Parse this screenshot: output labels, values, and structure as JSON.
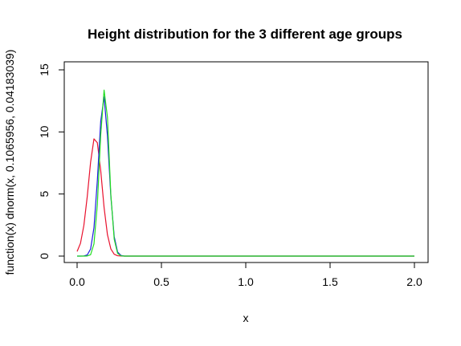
{
  "chart_data": {
    "type": "line",
    "title": "Height distribution for the 3 different age groups",
    "xlabel": "x",
    "ylabel": "function(x) dnorm(x, 0.1065956, 0.04183039)",
    "xlim": [
      0,
      2
    ],
    "ylim": [
      0,
      15
    ],
    "x_ticks": [
      0,
      0.5,
      1,
      1.5,
      2
    ],
    "x_tick_labels": [
      "0.0",
      "0.5",
      "1.0",
      "1.5",
      "2.0"
    ],
    "y_ticks": [
      0,
      5,
      10,
      15
    ],
    "y_tick_labels": [
      "0",
      "5",
      "10",
      "15"
    ],
    "grid": false,
    "series": [
      {
        "color": "#e8112d",
        "mean": 0.1065956,
        "sd": 0.04183039,
        "x": [
          0,
          0.02,
          0.04,
          0.06,
          0.08,
          0.1,
          0.12,
          0.14,
          0.16,
          0.18,
          0.2,
          0.22,
          0.24,
          0.26,
          0.28,
          0.3,
          2.0
        ],
        "y": [
          0.37,
          1.03,
          2.46,
          4.77,
          7.56,
          9.44,
          9.13,
          6.89,
          3.91,
          1.72,
          0.58,
          0.15,
          0.03,
          0.01,
          0,
          0,
          0
        ]
      },
      {
        "color": "#1d1ddf",
        "mean": 0.1575,
        "sd": 0.0311,
        "x": [
          0,
          0.02,
          0.04,
          0.06,
          0.08,
          0.1,
          0.12,
          0.14,
          0.16,
          0.18,
          0.2,
          0.22,
          0.24,
          0.26,
          0.28,
          0.3,
          2.0
        ],
        "y": [
          0,
          0,
          0.01,
          0.09,
          0.57,
          2.28,
          6.08,
          10.86,
          12.82,
          9.66,
          4.82,
          1.57,
          0.33,
          0.05,
          0,
          0,
          0
        ]
      },
      {
        "color": "#22dd22",
        "mean": 0.1655,
        "sd": 0.0297,
        "x": [
          0,
          0.02,
          0.04,
          0.06,
          0.08,
          0.1,
          0.12,
          0.14,
          0.16,
          0.18,
          0.2,
          0.22,
          0.24,
          0.26,
          0.28,
          0.3,
          2.0
        ],
        "y": [
          0,
          0,
          0,
          0.01,
          0.11,
          0.98,
          4.14,
          9.75,
          13.37,
          11.18,
          4.97,
          1.36,
          0.22,
          0.02,
          0,
          0,
          0
        ]
      }
    ]
  }
}
